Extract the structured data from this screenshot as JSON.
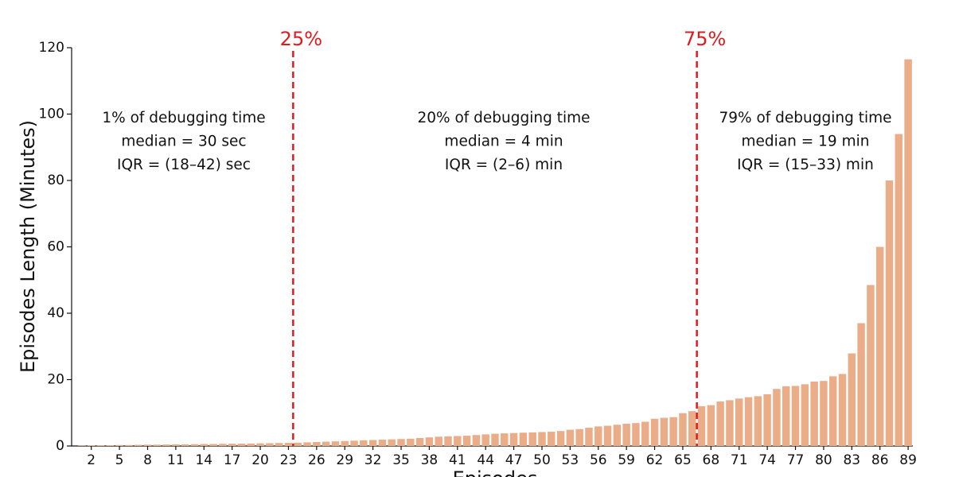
{
  "chart_data": {
    "type": "bar",
    "ylabel": "Episodes Length (Minutes)",
    "xlabel": "Episodes",
    "categories": [
      null,
      "2",
      null,
      null,
      "5",
      null,
      null,
      "8",
      null,
      null,
      "11",
      null,
      null,
      "14",
      null,
      null,
      "17",
      null,
      null,
      "20",
      null,
      null,
      "23",
      null,
      null,
      "26",
      null,
      null,
      "29",
      null,
      null,
      "32",
      null,
      null,
      "35",
      null,
      null,
      "38",
      null,
      null,
      "41",
      null,
      null,
      "44",
      null,
      null,
      "47",
      null,
      null,
      "50",
      null,
      null,
      "53",
      null,
      null,
      "56",
      null,
      null,
      "59",
      null,
      null,
      "62",
      null,
      null,
      "65",
      null,
      null,
      "68",
      null,
      null,
      "71",
      null,
      null,
      "74",
      null,
      null,
      "77",
      null,
      null,
      "80",
      null,
      null,
      "83",
      null,
      null,
      "86",
      null,
      null,
      "89"
    ],
    "values": [
      0.1,
      0.15,
      0.2,
      0.25,
      0.3,
      0.3,
      0.35,
      0.4,
      0.4,
      0.45,
      0.5,
      0.5,
      0.55,
      0.6,
      0.6,
      0.65,
      0.7,
      0.7,
      0.75,
      0.8,
      0.85,
      0.9,
      0.95,
      1.0,
      1.1,
      1.2,
      1.3,
      1.4,
      1.5,
      1.6,
      1.7,
      1.8,
      1.9,
      2.0,
      2.1,
      2.2,
      2.4,
      2.6,
      2.8,
      2.9,
      3.0,
      3.1,
      3.3,
      3.5,
      3.7,
      3.8,
      3.9,
      4.0,
      4.1,
      4.2,
      4.3,
      4.5,
      4.9,
      5.1,
      5.5,
      5.9,
      6.1,
      6.4,
      6.7,
      6.9,
      7.3,
      8.2,
      8.5,
      8.7,
      9.9,
      10.5,
      12.0,
      12.3,
      13.4,
      13.8,
      14.3,
      14.7,
      15.0,
      15.6,
      17.2,
      18.0,
      18.1,
      18.6,
      19.4,
      19.6,
      21.0,
      21.7,
      27.9,
      37.0,
      48.5,
      60.0,
      80.0,
      94.0,
      116.5
    ],
    "color": "#ebac88",
    "ylim": [
      0,
      120
    ],
    "yticks": [
      0,
      20,
      40,
      60,
      80,
      100,
      120
    ],
    "grid": false,
    "vlines": [
      {
        "x": 23.5,
        "label": "25%"
      },
      {
        "x": 66.5,
        "label": "75%"
      }
    ],
    "vline_color": "#e31a1c",
    "annotations": [
      [
        "1% of debugging time",
        "median = 30 sec",
        "IQR = (18–42) sec"
      ],
      [
        "20% of debugging time",
        "median = 4 min",
        "IQR = (2–6) min"
      ],
      [
        "79% of debugging time",
        "median = 19 min",
        "IQR = (15–33) min"
      ]
    ]
  }
}
